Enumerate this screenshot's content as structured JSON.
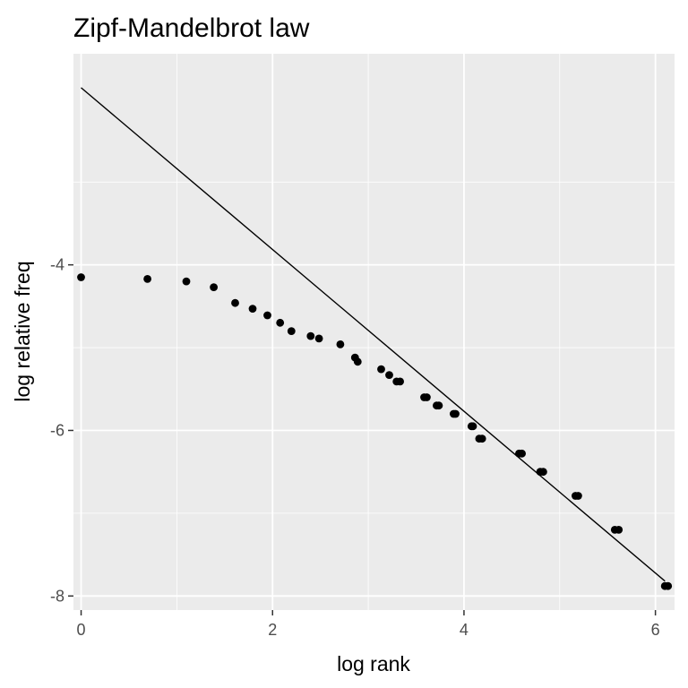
{
  "chart_data": {
    "type": "scatter",
    "title": "Zipf-Mandelbrot law",
    "xlabel": "log rank",
    "ylabel": "log relative freq",
    "xlim": [
      -0.08,
      6.2
    ],
    "ylim": [
      -8.17,
      -1.45
    ],
    "x_ticks": [
      0,
      2,
      4,
      6
    ],
    "x_tick_labels": [
      "0",
      "2",
      "4",
      "6"
    ],
    "y_ticks": [
      -8,
      -6,
      -4
    ],
    "y_tick_labels": [
      "-8",
      "-6",
      "-4"
    ],
    "grid": true,
    "legend": "none",
    "colors": {
      "panel_background": "#ebebeb",
      "grid": "#ffffff",
      "points": "#000000",
      "line": "#000000"
    },
    "series": [
      {
        "kind": "points",
        "x": [
          0.0,
          0.693,
          1.099,
          1.386,
          1.609,
          1.792,
          1.946,
          2.079,
          2.197,
          2.398,
          2.485,
          2.708,
          2.862,
          2.89,
          3.135,
          3.219,
          3.296,
          3.332,
          3.584,
          3.611,
          3.714,
          3.738,
          3.892,
          3.912,
          4.078,
          4.094,
          4.159,
          4.19,
          4.575,
          4.605,
          4.796,
          4.828,
          5.165,
          5.193,
          5.576,
          5.617,
          6.099,
          6.132
        ],
        "y": [
          -4.15,
          -4.17,
          -4.2,
          -4.27,
          -4.46,
          -4.53,
          -4.61,
          -4.7,
          -4.8,
          -4.86,
          -4.89,
          -4.96,
          -5.12,
          -5.17,
          -5.26,
          -5.33,
          -5.41,
          -5.41,
          -5.6,
          -5.6,
          -5.7,
          -5.7,
          -5.8,
          -5.8,
          -5.95,
          -5.95,
          -6.1,
          -6.1,
          -6.28,
          -6.28,
          -6.5,
          -6.5,
          -6.79,
          -6.79,
          -7.2,
          -7.2,
          -7.88,
          -7.88
        ]
      },
      {
        "kind": "line",
        "x": [
          0.0,
          6.1
        ],
        "y": [
          -1.86,
          -7.82
        ]
      }
    ]
  }
}
